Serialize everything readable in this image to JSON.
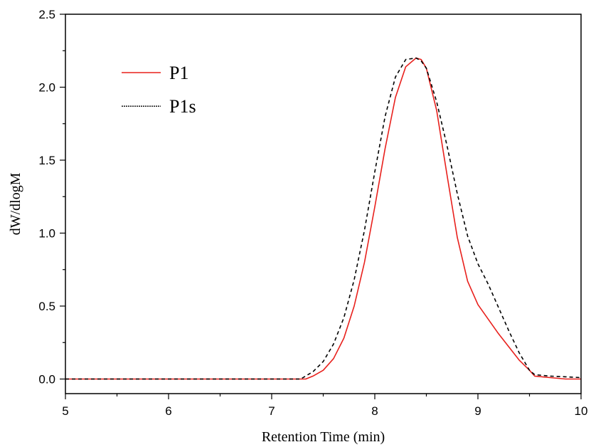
{
  "chart_data": {
    "type": "line",
    "title": "",
    "xlabel": "Retention Time (min)",
    "ylabel": "dW/dlogM",
    "xlim": [
      5,
      10
    ],
    "ylim": [
      -0.1,
      2.5
    ],
    "x_ticks": [
      5,
      6,
      7,
      8,
      9,
      10
    ],
    "x_tick_labels": [
      "5",
      "6",
      "7",
      "8",
      "9",
      "10"
    ],
    "y_ticks": [
      0.0,
      0.5,
      1.0,
      1.5,
      2.0,
      2.5
    ],
    "y_tick_labels": [
      "0.0",
      "0.5",
      "1.0",
      "1.5",
      "2.0",
      "2.5"
    ],
    "grid": false,
    "legend_position": "top-left",
    "series": [
      {
        "name": "P1",
        "color": "#e8201c",
        "line_style": "solid",
        "x": [
          5.0,
          6.0,
          7.0,
          7.33,
          7.4,
          7.5,
          7.6,
          7.7,
          7.8,
          7.9,
          8.0,
          8.1,
          8.2,
          8.3,
          8.4,
          8.45,
          8.5,
          8.6,
          8.7,
          8.8,
          8.9,
          9.0,
          9.1,
          9.2,
          9.3,
          9.4,
          9.5,
          9.55,
          9.7,
          9.85,
          10.0
        ],
        "y": [
          0.0,
          0.0,
          0.0,
          0.0,
          0.02,
          0.06,
          0.14,
          0.28,
          0.5,
          0.8,
          1.18,
          1.58,
          1.93,
          2.14,
          2.2,
          2.19,
          2.13,
          1.84,
          1.4,
          0.97,
          0.67,
          0.51,
          0.41,
          0.31,
          0.22,
          0.13,
          0.06,
          0.02,
          0.01,
          0.0,
          0.0
        ]
      },
      {
        "name": "P1s",
        "color": "#000000",
        "line_style": "dashed",
        "x": [
          5.0,
          6.0,
          7.0,
          7.28,
          7.4,
          7.5,
          7.6,
          7.7,
          7.8,
          7.9,
          8.0,
          8.1,
          8.2,
          8.3,
          8.4,
          8.45,
          8.5,
          8.6,
          8.7,
          8.8,
          8.9,
          9.0,
          9.1,
          9.2,
          9.3,
          9.4,
          9.5,
          9.55,
          9.7,
          9.85,
          10.0
        ],
        "y": [
          0.0,
          0.0,
          0.0,
          0.0,
          0.05,
          0.12,
          0.24,
          0.42,
          0.68,
          1.02,
          1.42,
          1.8,
          2.07,
          2.19,
          2.2,
          2.18,
          2.13,
          1.9,
          1.6,
          1.27,
          0.98,
          0.79,
          0.65,
          0.49,
          0.33,
          0.18,
          0.06,
          0.03,
          0.02,
          0.015,
          0.01
        ]
      }
    ]
  }
}
